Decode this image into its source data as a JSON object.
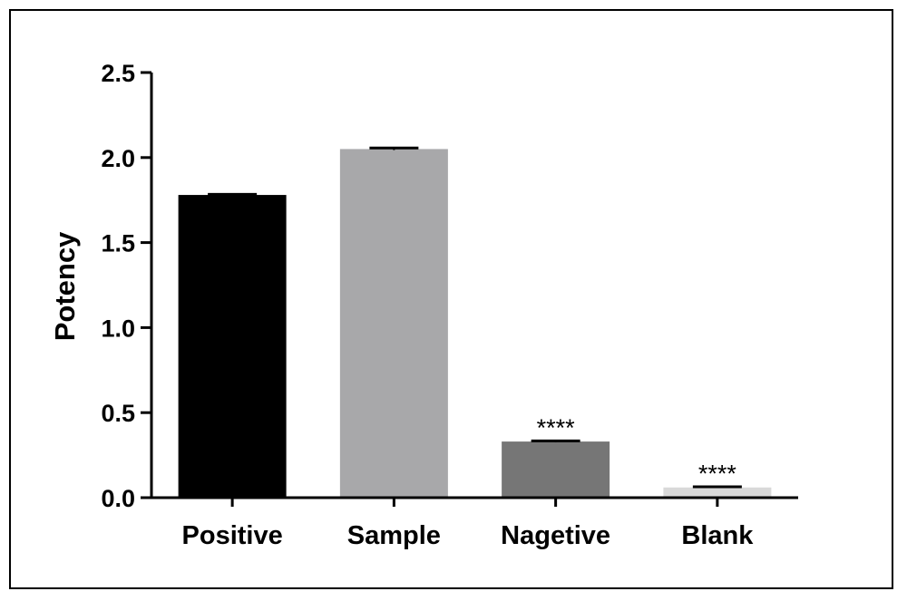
{
  "chart_data": {
    "type": "bar",
    "categories": [
      "Positive",
      "Sample",
      "Nagetive",
      "Blank"
    ],
    "values": [
      1.78,
      2.05,
      0.33,
      0.06
    ],
    "errors": [
      0.004,
      0.006,
      0.004,
      0.004
    ],
    "annotations": [
      "",
      "",
      "****",
      "****"
    ],
    "bar_colors": [
      "#000000",
      "#a8a8aa",
      "#767676",
      "#d9d9d9"
    ],
    "title": "",
    "xlabel": "",
    "ylabel": "Potency",
    "ylim": [
      0,
      2.5
    ],
    "yticks": [
      "0.0",
      "0.5",
      "1.0",
      "1.5",
      "2.0",
      "2.5"
    ],
    "grid": false,
    "legend": "none"
  }
}
